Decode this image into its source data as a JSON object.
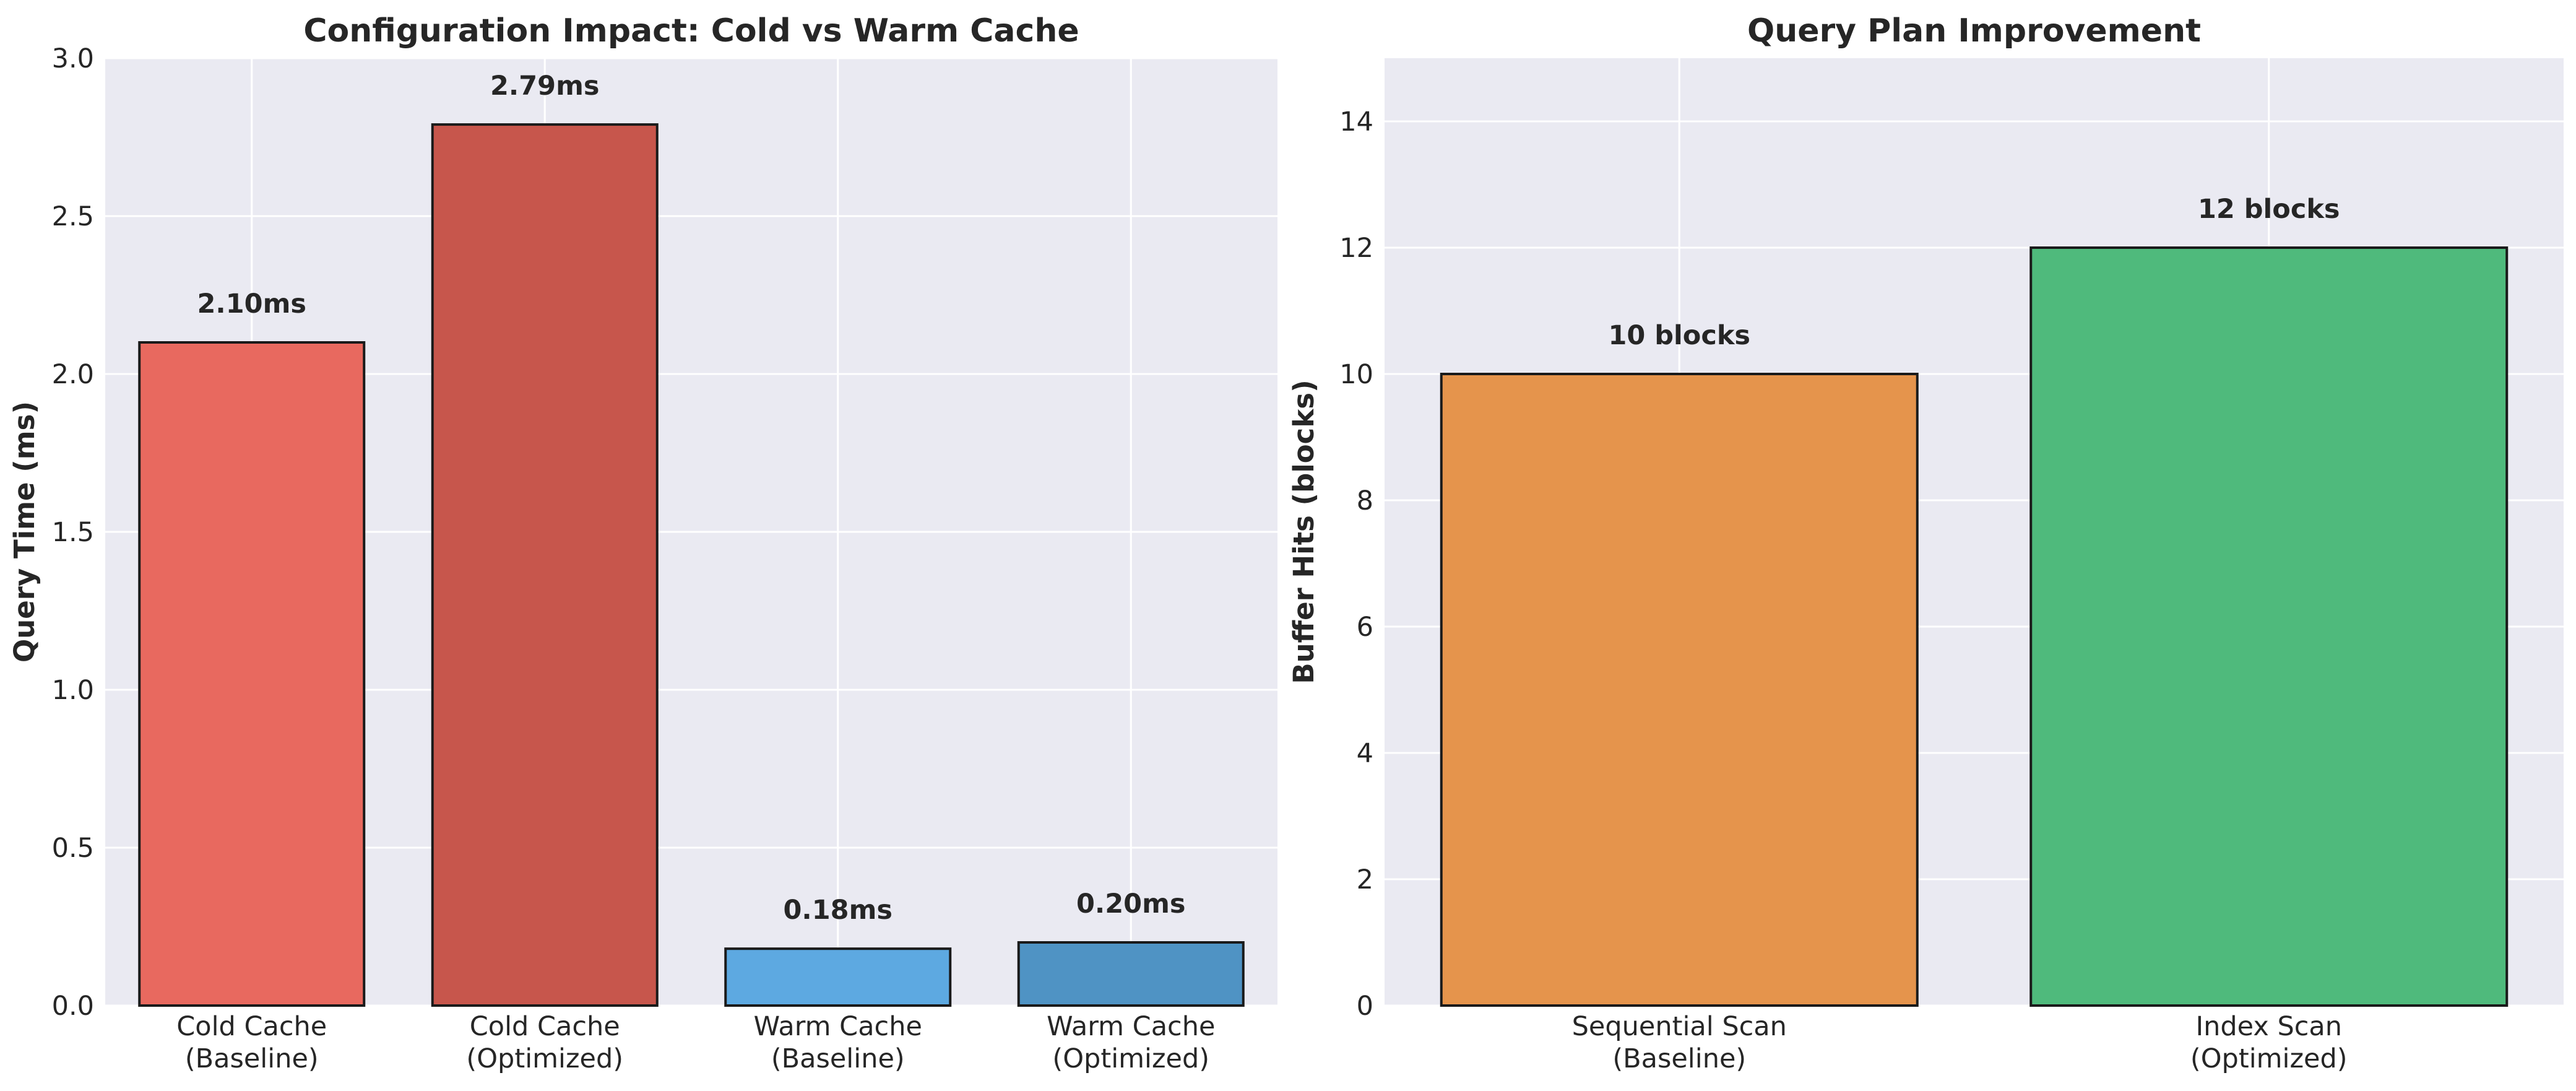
{
  "chart_data": [
    {
      "type": "bar",
      "title": "Configuration Impact: Cold vs Warm Cache",
      "xlabel": "",
      "ylabel": "Query Time (ms)",
      "ylim": [
        0,
        3.0
      ],
      "yticks": [
        0.0,
        0.5,
        1.0,
        1.5,
        2.0,
        2.5,
        3.0
      ],
      "ytick_labels": [
        "0.0",
        "0.5",
        "1.0",
        "1.5",
        "2.0",
        "2.5",
        "3.0"
      ],
      "grid": true,
      "categories": [
        [
          "Cold Cache",
          "(Baseline)"
        ],
        [
          "Cold Cache",
          "(Optimized)"
        ],
        [
          "Warm Cache",
          "(Baseline)"
        ],
        [
          "Warm Cache",
          "(Optimized)"
        ]
      ],
      "values": [
        2.1,
        2.79,
        0.18,
        0.2
      ],
      "value_labels": [
        "2.10ms",
        "2.79ms",
        "0.18ms",
        "0.20ms"
      ],
      "colors": [
        "#E8695F",
        "#C7564C",
        "#5DA9E1",
        "#4F93C4"
      ]
    },
    {
      "type": "bar",
      "title": "Query Plan Improvement",
      "xlabel": "",
      "ylabel": "Buffer Hits (blocks)",
      "ylim": [
        0,
        15
      ],
      "yticks": [
        0,
        2,
        4,
        6,
        8,
        10,
        12,
        14
      ],
      "ytick_labels": [
        "0",
        "2",
        "4",
        "6",
        "8",
        "10",
        "12",
        "14"
      ],
      "grid": true,
      "categories": [
        [
          "Sequential Scan",
          "(Baseline)"
        ],
        [
          "Index Scan",
          "(Optimized)"
        ]
      ],
      "values": [
        10,
        12
      ],
      "value_labels": [
        "10 blocks",
        "12 blocks"
      ],
      "colors": [
        "#E5944C",
        "#4FBA7C"
      ]
    }
  ]
}
